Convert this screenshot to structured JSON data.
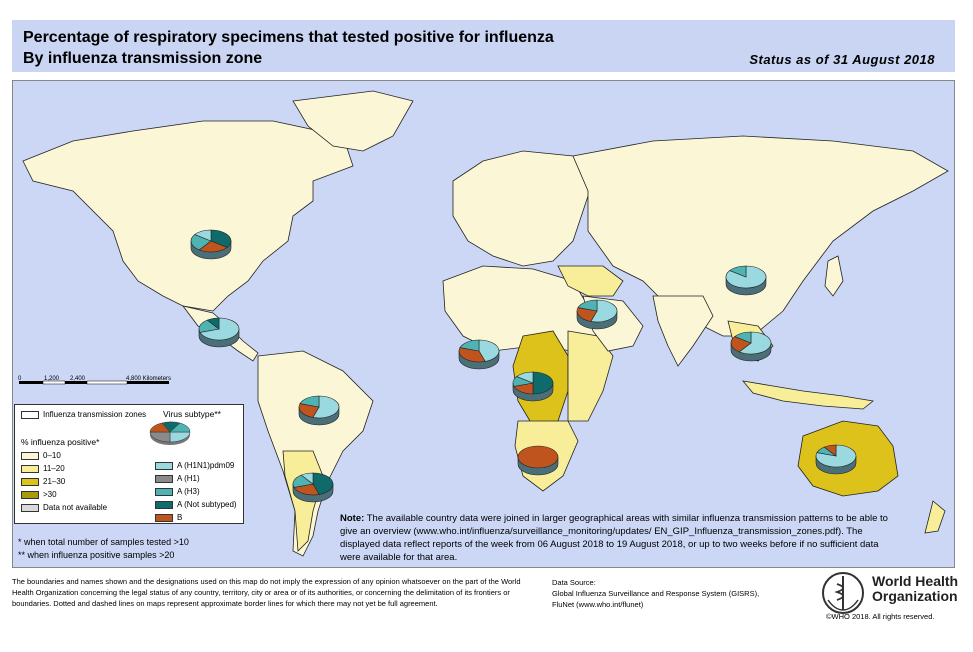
{
  "header": {
    "title_line1": "Percentage of respiratory specimens that tested positive for influenza",
    "title_line2": "By influenza transmission zone",
    "status": "Status as of 31 August 2018"
  },
  "colors": {
    "ocean": "#cbd7f5",
    "land_0_10": "#fbf7d6",
    "land_11_20": "#f8ee9a",
    "land_21_30": "#dcc21a",
    "land_gt30": "#a89a0a",
    "no_data": "#d9d9d9",
    "h1n1": "#9ad9e0",
    "h1": "#8a8a8a",
    "h3": "#4fb3b3",
    "a_not_subtyped": "#0f6b6b",
    "b": "#c0541e"
  },
  "scale": {
    "labels": [
      "0",
      "1,200",
      "2,400",
      "4,800 Kilometers"
    ]
  },
  "legend": {
    "zones_label": "Influenza transmission zones",
    "virus_subtype_label": "Virus subtype**",
    "percent_header": "% influenza positive*",
    "percent_items": [
      {
        "label": "0–10",
        "color": "#fbf7d6"
      },
      {
        "label": "11–20",
        "color": "#f8ee9a"
      },
      {
        "label": "21–30",
        "color": "#dcc21a"
      },
      {
        "label": ">30",
        "color": "#a89a0a"
      },
      {
        "label": "Data not available",
        "color": "#d9d9d9"
      }
    ],
    "subtype_items": [
      {
        "label": "A (H1N1)pdm09",
        "color": "#9ad9e0"
      },
      {
        "label": "A (H1)",
        "color": "#8a8a8a"
      },
      {
        "label": "A (H3)",
        "color": "#4fb3b3"
      },
      {
        "label": "A (Not subtyped)",
        "color": "#0f6b6b"
      },
      {
        "label": "B",
        "color": "#c0541e"
      }
    ]
  },
  "footnotes": {
    "line1": "*   when total number of samples tested >10",
    "line2": "** when influenza positive samples >20"
  },
  "note": {
    "label": "Note:",
    "text": "The available country data were joined in larger geographical areas with similar influenza transmission patterns to be able to give an overview (www.who.int/influenza/surveillance_monitoring/updates/ EN_GIP_Influenza_transmission_zones.pdf). The displayed data reflect reports of the week from 06 August 2018 to 19 August 2018, or up to two weeks before if no sufficient data were available for that area."
  },
  "disclaimer": "The boundaries and names shown and the designations used on this map do not imply the expression of any opinion whatsoever on the part of the World Health Organization concerning the legal status of any country, territory, city or area or of its authorities, or concerning the delimitation of its frontiers or boundaries. Dotted and dashed lines on maps represent approximate border lines for which there may not yet be full agreement.",
  "datasource": {
    "label": "Data Source:",
    "line1": "Global Influenza Surveillance and Response System (GISRS),",
    "line2": "FluNet (www.who.int/flunet)"
  },
  "who": {
    "line1": "World Health",
    "line2": "Organization",
    "copyright": "©WHO 2018. All rights reserved."
  },
  "pies": [
    {
      "region": "North America",
      "slices": [
        {
          "subtype": "a_not_subtyped",
          "value": 35
        },
        {
          "subtype": "b",
          "value": 25
        },
        {
          "subtype": "h3",
          "value": 25
        },
        {
          "subtype": "h1n1",
          "value": 15
        }
      ]
    },
    {
      "region": "Central America",
      "slices": [
        {
          "subtype": "h1n1",
          "value": 70
        },
        {
          "subtype": "h3",
          "value": 20
        },
        {
          "subtype": "a_not_subtyped",
          "value": 10
        }
      ]
    },
    {
      "region": "Tropical South America",
      "slices": [
        {
          "subtype": "h1n1",
          "value": 55
        },
        {
          "subtype": "b",
          "value": 25
        },
        {
          "subtype": "h3",
          "value": 20
        }
      ]
    },
    {
      "region": "Temperate South America",
      "slices": [
        {
          "subtype": "a_not_subtyped",
          "value": 45
        },
        {
          "subtype": "b",
          "value": 25
        },
        {
          "subtype": "h3",
          "value": 20
        },
        {
          "subtype": "h1n1",
          "value": 10
        }
      ]
    },
    {
      "region": "Western Africa",
      "slices": [
        {
          "subtype": "h1n1",
          "value": 45
        },
        {
          "subtype": "b",
          "value": 35
        },
        {
          "subtype": "h3",
          "value": 20
        }
      ]
    },
    {
      "region": "Middle Africa",
      "slices": [
        {
          "subtype": "a_not_subtyped",
          "value": 50
        },
        {
          "subtype": "b",
          "value": 20
        },
        {
          "subtype": "h3",
          "value": 15
        },
        {
          "subtype": "h1n1",
          "value": 15
        }
      ]
    },
    {
      "region": "Southern Africa",
      "slices": [
        {
          "subtype": "b",
          "value": 100
        }
      ]
    },
    {
      "region": "Western Asia",
      "slices": [
        {
          "subtype": "h1n1",
          "value": 55
        },
        {
          "subtype": "b",
          "value": 25
        },
        {
          "subtype": "h3",
          "value": 20
        }
      ]
    },
    {
      "region": "Eastern Asia",
      "slices": [
        {
          "subtype": "h1n1",
          "value": 85
        },
        {
          "subtype": "h3",
          "value": 15
        }
      ]
    },
    {
      "region": "South-East Asia",
      "slices": [
        {
          "subtype": "h1n1",
          "value": 60
        },
        {
          "subtype": "b",
          "value": 25
        },
        {
          "subtype": "h3",
          "value": 15
        }
      ]
    },
    {
      "region": "Oceania",
      "slices": [
        {
          "subtype": "h1n1",
          "value": 80
        },
        {
          "subtype": "h3",
          "value": 10
        },
        {
          "subtype": "b",
          "value": 10
        }
      ]
    }
  ]
}
